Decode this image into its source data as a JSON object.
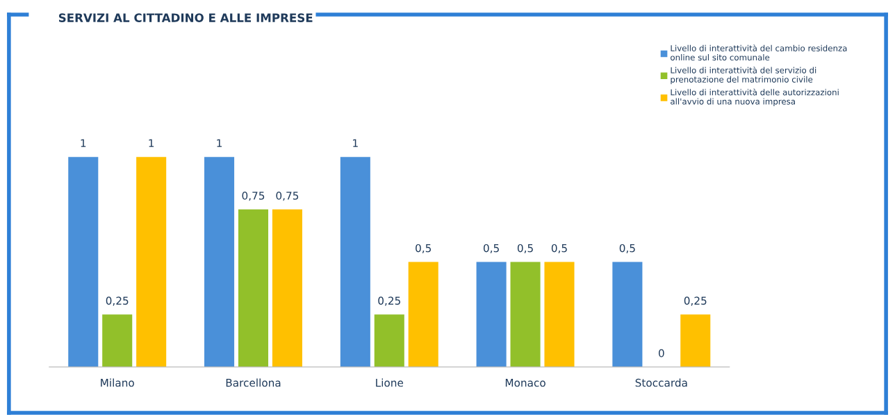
{
  "chart_data": {
    "type": "bar",
    "title": "SERVIZI AL CITTADINO E ALLE IMPRESE",
    "categories": [
      "Milano",
      "Barcellona",
      "Lione",
      "Monaco",
      "Stoccarda"
    ],
    "series": [
      {
        "name": "Livello di interattività del cambio residenza\nonline sul sito comunale",
        "color": "#4a90d9",
        "values": [
          1,
          1,
          1,
          0.5,
          0.5
        ],
        "value_labels": [
          "1",
          "1",
          "1",
          "0,5",
          "0,5"
        ]
      },
      {
        "name": "Livello di interattività del servizio di\nprenotazione del matrimonio civile",
        "color": "#92c02a",
        "values": [
          0.25,
          0.75,
          0.25,
          0.5,
          0
        ],
        "value_labels": [
          "0,25",
          "0,75",
          "0,25",
          "0,5",
          "0"
        ]
      },
      {
        "name": "Livello di interattività delle autorizzazioni\nall'avvio di una nuova impresa",
        "color": "#ffc000",
        "values": [
          1,
          0.75,
          0.5,
          0.5,
          0.25
        ],
        "value_labels": [
          "1",
          "0,75",
          "0,5",
          "0,5",
          "0,25"
        ]
      }
    ],
    "legend": "top right",
    "grid": false
  }
}
